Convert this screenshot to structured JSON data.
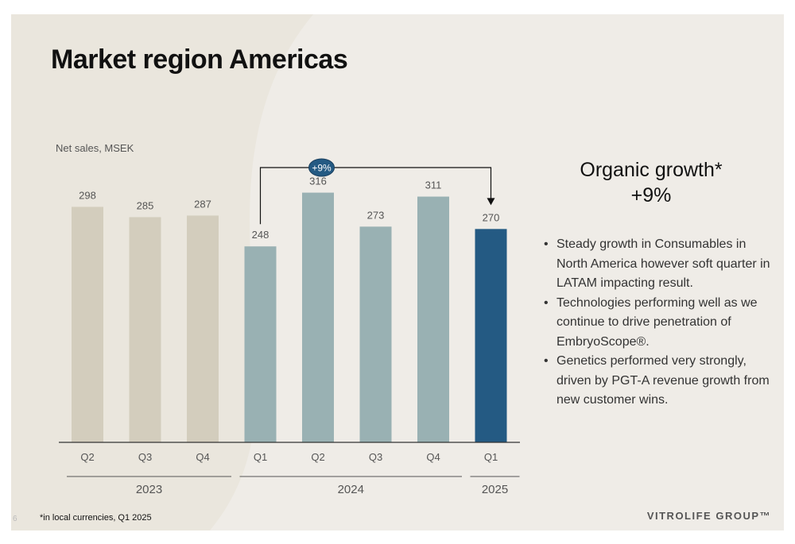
{
  "slide": {
    "title": "Market region Americas",
    "page_number": "6",
    "footnote": "*in local currencies, Q1 2025",
    "logo": "VITROLIFE GROUP™"
  },
  "side": {
    "title_line1": "Organic growth*",
    "title_line2": "+9%",
    "bullets": [
      "Steady growth in Consumables in North America however soft quarter in LATAM impacting result.",
      "Technologies performing well as we continue to drive penetration of EmbryoScope®.",
      "Genetics performed very strongly, driven by PGT-A revenue growth from new customer wins."
    ]
  },
  "chart_data": {
    "type": "bar",
    "ylabel": "Net sales, MSEK",
    "categories": [
      "Q2",
      "Q3",
      "Q4",
      "Q1",
      "Q2",
      "Q3",
      "Q4",
      "Q1"
    ],
    "values": [
      298,
      285,
      287,
      248,
      316,
      273,
      311,
      270
    ],
    "year_groups": [
      {
        "label": "2023",
        "count": 3
      },
      {
        "label": "2024",
        "count": 4
      },
      {
        "label": "2025",
        "count": 1
      }
    ],
    "bar_colors": [
      "#d3cdbd",
      "#d3cdbd",
      "#d3cdbd",
      "#99b1b3",
      "#99b1b3",
      "#99b1b3",
      "#99b1b3",
      "#245a83"
    ],
    "annotation": {
      "label": "+9%",
      "from_index": 3,
      "to_index": 7
    },
    "ylim": [
      0,
      340
    ],
    "grid": false
  }
}
